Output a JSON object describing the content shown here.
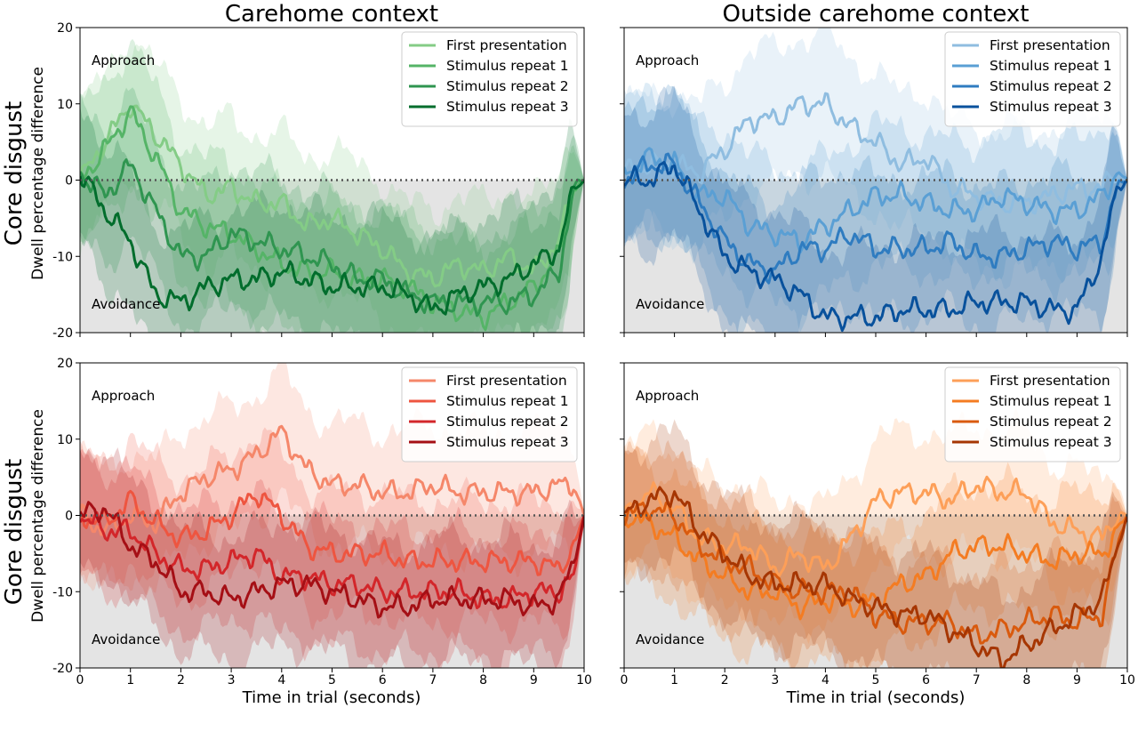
{
  "figure": {
    "column_titles": [
      "Carehome context",
      "Outside carehome context"
    ],
    "row_titles": [
      "Core disgust",
      "Gore disgust"
    ],
    "ylabel": "Dwell percentage difference",
    "xlabel": "Time in trial (seconds)",
    "annotations": {
      "top": "Approach",
      "bottom": "Avoidance"
    }
  },
  "chart_data": [
    {
      "type": "line",
      "panel": "Core disgust / Carehome context",
      "title": "Carehome context",
      "ylabel": "Dwell percentage difference",
      "xlabel": "",
      "xlim": [
        0,
        10
      ],
      "ylim": [
        -20,
        20
      ],
      "xticks": [
        0,
        1,
        2,
        3,
        4,
        5,
        6,
        7,
        8,
        9,
        10
      ],
      "yticks": [
        -20,
        -10,
        0,
        10,
        20
      ],
      "reference_line": 0,
      "legend_position": "top-right",
      "band_halfwidth": 9,
      "colors": [
        "#84cc86",
        "#55b467",
        "#2f9550",
        "#006d2c"
      ],
      "x": [
        0,
        0.5,
        1,
        1.5,
        2,
        2.5,
        3,
        3.5,
        4,
        4.5,
        5,
        5.5,
        6,
        6.5,
        7,
        7.5,
        8,
        8.5,
        9,
        9.5,
        9.8,
        10
      ],
      "series": [
        {
          "name": "First presentation",
          "values": [
            0,
            5,
            10,
            6,
            2,
            -2,
            -1,
            -3,
            -3,
            -6,
            -5,
            -7,
            -9,
            -12,
            -13,
            -11,
            -12,
            -10,
            -12,
            -8,
            -1,
            0
          ]
        },
        {
          "name": "Stimulus repeat 1",
          "values": [
            0,
            4,
            9,
            3,
            -4,
            -6,
            -7,
            -9,
            -11,
            -12,
            -12,
            -13,
            -13,
            -14,
            -16,
            -17,
            -18,
            -16,
            -14,
            -10,
            -1,
            0
          ]
        },
        {
          "name": "Stimulus repeat 2",
          "values": [
            1,
            -2,
            2,
            -4,
            -10,
            -10,
            -7,
            -8,
            -9,
            -10,
            -11,
            -13,
            -13,
            -15,
            -16,
            -16,
            -16,
            -16,
            -15,
            -12,
            -1,
            0
          ]
        },
        {
          "name": "Stimulus repeat 3",
          "values": [
            1,
            -4,
            -8,
            -15,
            -16,
            -14,
            -13,
            -13,
            -12,
            -13,
            -14,
            -14,
            -14,
            -15,
            -17,
            -15,
            -14,
            -13,
            -11,
            -9,
            -1,
            0
          ]
        }
      ]
    },
    {
      "type": "line",
      "panel": "Core disgust / Outside carehome context",
      "title": "Outside carehome context",
      "xlim": [
        0,
        10
      ],
      "ylim": [
        -20,
        20
      ],
      "xticks": [
        0,
        1,
        2,
        3,
        4,
        5,
        6,
        7,
        8,
        9,
        10
      ],
      "yticks": [
        -20,
        -10,
        0,
        10,
        20
      ],
      "reference_line": 0,
      "legend_position": "top-right",
      "band_halfwidth": 9,
      "colors": [
        "#8fbde0",
        "#5a9fd4",
        "#2f7cc0",
        "#08519c"
      ],
      "x": [
        0,
        0.5,
        1,
        1.5,
        2,
        2.5,
        3,
        3.5,
        4,
        4.5,
        5,
        5.5,
        6,
        6.5,
        7,
        7.5,
        8,
        8.5,
        9,
        9.5,
        9.8,
        10
      ],
      "series": [
        {
          "name": "First presentation",
          "values": [
            1,
            2,
            2,
            1,
            4,
            8,
            8,
            10,
            10,
            7,
            5,
            2,
            3,
            -1,
            -2,
            -3,
            -3,
            -2,
            -1,
            -1,
            1,
            0
          ]
        },
        {
          "name": "Stimulus repeat 1",
          "values": [
            1,
            3,
            2,
            -2,
            -2,
            -6,
            -7,
            -8,
            -6,
            -4,
            -2,
            -2,
            -3,
            -4,
            -4,
            -2,
            -3,
            -4,
            -4,
            -2,
            1,
            0
          ]
        },
        {
          "name": "Stimulus repeat 2",
          "values": [
            0,
            2,
            2,
            -3,
            -8,
            -11,
            -12,
            -9,
            -9,
            -7,
            -9,
            -9,
            -9,
            -8,
            -10,
            -10,
            -9,
            -8,
            -9,
            -8,
            -1,
            0
          ]
        },
        {
          "name": "Stimulus repeat 3",
          "values": [
            0,
            0,
            2,
            -4,
            -10,
            -12,
            -13,
            -15,
            -18,
            -18,
            -18,
            -17,
            -17,
            -17,
            -16,
            -16,
            -16,
            -17,
            -17,
            -10,
            -1,
            0
          ]
        }
      ]
    },
    {
      "type": "line",
      "panel": "Gore disgust / Carehome context",
      "title": "",
      "ylabel": "Dwell percentage difference",
      "xlabel": "Time in trial (seconds)",
      "xlim": [
        0,
        10
      ],
      "ylim": [
        -20,
        20
      ],
      "xticks": [
        0,
        1,
        2,
        3,
        4,
        5,
        6,
        7,
        8,
        9,
        10
      ],
      "yticks": [
        -20,
        -10,
        0,
        10,
        20
      ],
      "reference_line": 0,
      "legend_position": "top-right",
      "band_halfwidth": 8,
      "colors": [
        "#f5876a",
        "#ee5540",
        "#d3262a",
        "#a50f15"
      ],
      "x": [
        0,
        0.5,
        1,
        1.5,
        2,
        2.5,
        3,
        3.5,
        4,
        4.5,
        5,
        5.5,
        6,
        6.5,
        7,
        7.5,
        8,
        8.5,
        9,
        9.5,
        9.8,
        10
      ],
      "series": [
        {
          "name": "First presentation",
          "values": [
            0,
            -2,
            0,
            -1,
            3,
            5,
            6,
            8,
            11,
            6,
            4,
            4,
            3,
            3,
            4,
            3,
            3,
            3,
            3,
            4,
            4,
            0
          ]
        },
        {
          "name": "Stimulus repeat 1",
          "values": [
            0,
            -1,
            2,
            -1,
            -3,
            -2,
            0,
            3,
            0,
            -4,
            -5,
            -5,
            -5,
            -6,
            -6,
            -6,
            -6,
            -6,
            -6,
            -7,
            -4,
            0
          ]
        },
        {
          "name": "Stimulus repeat 2",
          "values": [
            0,
            -2,
            -2,
            -5,
            -7,
            -7,
            -6,
            -5,
            -8,
            -8,
            -9,
            -9,
            -10,
            -10,
            -10,
            -10,
            -11,
            -11,
            -10,
            -10,
            -8,
            0
          ]
        },
        {
          "name": "Stimulus repeat 3",
          "values": [
            0,
            1,
            -4,
            -6,
            -10,
            -10,
            -11,
            -10,
            -9,
            -9,
            -10,
            -11,
            -12,
            -12,
            -11,
            -11,
            -11,
            -11,
            -12,
            -11,
            -6,
            0
          ]
        }
      ]
    },
    {
      "type": "line",
      "panel": "Gore disgust / Outside carehome context",
      "title": "",
      "xlabel": "Time in trial (seconds)",
      "xlim": [
        0,
        10
      ],
      "ylim": [
        -20,
        20
      ],
      "xticks": [
        0,
        1,
        2,
        3,
        4,
        5,
        6,
        7,
        8,
        9,
        10
      ],
      "yticks": [
        -20,
        -10,
        0,
        10,
        20
      ],
      "reference_line": 0,
      "legend_position": "top-right",
      "band_halfwidth": 8,
      "colors": [
        "#fd9f58",
        "#f47c22",
        "#d95a0e",
        "#a63603"
      ],
      "x": [
        0,
        0.5,
        1,
        1.5,
        2,
        2.5,
        3,
        3.5,
        4,
        4.5,
        5,
        5.5,
        6,
        6.5,
        7,
        7.5,
        8,
        8.5,
        9,
        9.5,
        9.8,
        10
      ],
      "series": [
        {
          "name": "First presentation",
          "values": [
            0,
            3,
            1,
            -3,
            -4,
            -4,
            -7,
            -5,
            -7,
            -3,
            2,
            3,
            3,
            2,
            4,
            3,
            3,
            -1,
            -2,
            -3,
            0,
            0
          ]
        },
        {
          "name": "Stimulus repeat 1",
          "values": [
            0,
            -1,
            -3,
            -6,
            -8,
            -10,
            -10,
            -12,
            -11,
            -12,
            -11,
            -9,
            -8,
            -5,
            -4,
            -4,
            -5,
            -6,
            -5,
            -5,
            -2,
            0
          ]
        },
        {
          "name": "Stimulus repeat 2",
          "values": [
            0,
            1,
            0,
            -4,
            -6,
            -7,
            -9,
            -10,
            -10,
            -10,
            -13,
            -14,
            -14,
            -14,
            -16,
            -15,
            -14,
            -13,
            -14,
            -13,
            -4,
            0
          ]
        },
        {
          "name": "Stimulus repeat 3",
          "values": [
            0,
            2,
            3,
            -2,
            -5,
            -8,
            -9,
            -9,
            -9,
            -11,
            -12,
            -13,
            -13,
            -15,
            -17,
            -19,
            -17,
            -15,
            -13,
            -11,
            -4,
            0
          ]
        }
      ]
    }
  ]
}
